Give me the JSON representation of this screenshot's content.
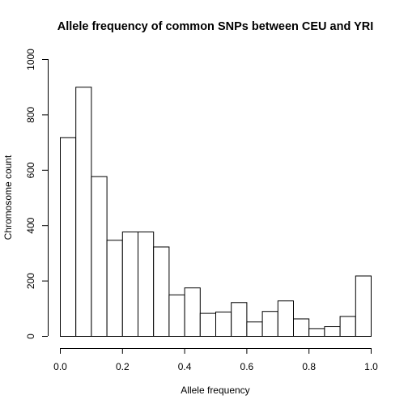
{
  "chart_data": {
    "type": "bar",
    "title": "Allele frequency of common SNPs between CEU and YRI",
    "xlabel": "Allele frequency",
    "ylabel": "Chromosome count",
    "xlim": [
      0.0,
      1.0
    ],
    "ylim": [
      0,
      1000
    ],
    "xticks": [
      0.0,
      0.2,
      0.4,
      0.6,
      0.8,
      1.0
    ],
    "xtick_labels": [
      "0.0",
      "0.2",
      "0.4",
      "0.6",
      "0.8",
      "1.0"
    ],
    "yticks": [
      0,
      200,
      400,
      600,
      800,
      1000
    ],
    "ytick_labels": [
      "0",
      "200",
      "400",
      "600",
      "800",
      "1000"
    ],
    "bin_edges": [
      0.0,
      0.05,
      0.1,
      0.15,
      0.2,
      0.25,
      0.3,
      0.35,
      0.4,
      0.45,
      0.5,
      0.55,
      0.6,
      0.65,
      0.7,
      0.75,
      0.8,
      0.85,
      0.9,
      0.95,
      1.0
    ],
    "values": [
      718,
      900,
      577,
      347,
      377,
      377,
      323,
      150,
      175,
      83,
      88,
      122,
      52,
      90,
      128,
      63,
      28,
      35,
      72,
      218
    ],
    "grid": false
  }
}
